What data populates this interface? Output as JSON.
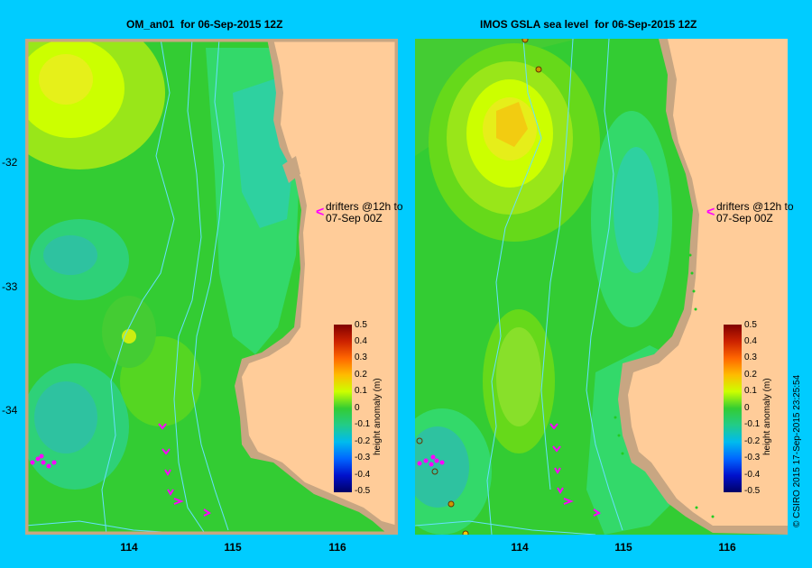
{
  "panels": [
    {
      "title": "OM_an01  for 06-Sep-2015 12Z"
    },
    {
      "title": "IMOS GSLA sea level  for 06-Sep-2015 12Z"
    }
  ],
  "y_ticks": [
    "-32",
    "-33",
    "-34"
  ],
  "x_ticks": [
    "114",
    "115",
    "116"
  ],
  "annotation": {
    "line1": "drifters @12h to",
    "line2": "07-Sep 00Z",
    "arrow": "<"
  },
  "colorbar": {
    "title": "height anomaly (m)",
    "ticks": [
      "0.5",
      "0.4",
      "0.3",
      "0.2",
      "0.1",
      "0",
      "-0.1",
      "-0.2",
      "-0.3",
      "-0.4",
      "-0.5"
    ]
  },
  "credit": "© CSIRO 2015   17-Sep-2015 23:25:54",
  "colors": {
    "background": "#00ccff",
    "land": "#ffcc99",
    "coast_shelf": "#c8a682",
    "drifter": "#ff00ff",
    "isobath": "#66e0ff"
  }
}
